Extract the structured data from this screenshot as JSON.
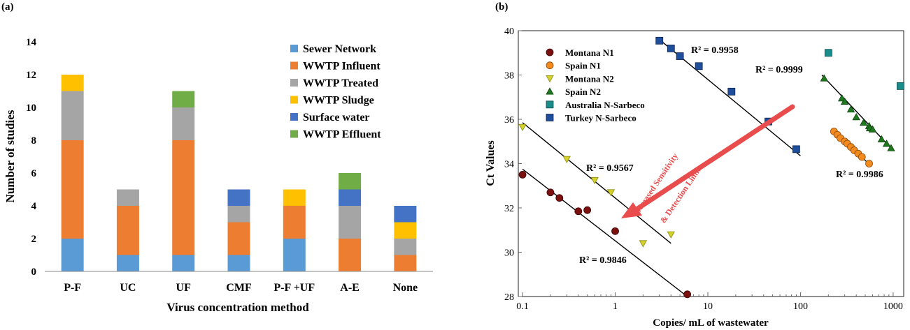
{
  "chart_data": [
    {
      "panel_label": "(a)",
      "type": "bar",
      "stacked": true,
      "xlabel": "Virus concentration method",
      "ylabel": "Number of studies",
      "ylim": [
        0,
        14
      ],
      "yticks": [
        0,
        2,
        4,
        6,
        8,
        10,
        12,
        14
      ],
      "categories": [
        "P-F",
        "UC",
        "UF",
        "CMF",
        "P-F +UF",
        "A-E",
        "None"
      ],
      "legend_position": "top-right",
      "series": [
        {
          "name": "Sewer Network",
          "color": "#5b9bd5",
          "values": [
            2,
            1,
            1,
            1,
            2,
            0,
            0
          ]
        },
        {
          "name": "WWTP Influent",
          "color": "#ed7d31",
          "values": [
            6,
            3,
            7,
            2,
            2,
            2,
            1
          ]
        },
        {
          "name": "WWTP Treated",
          "color": "#a5a5a5",
          "values": [
            3,
            1,
            2,
            1,
            0,
            2,
            1
          ]
        },
        {
          "name": "WWTP Sludge",
          "color": "#ffc000",
          "values": [
            1,
            0,
            0,
            0,
            1,
            0,
            1
          ]
        },
        {
          "name": "Surface water",
          "color": "#4472c4",
          "values": [
            0,
            0,
            0,
            1,
            0,
            1,
            1
          ]
        },
        {
          "name": "WWTP Effluent",
          "color": "#70ad47",
          "values": [
            0,
            0,
            1,
            0,
            0,
            1,
            0
          ]
        }
      ]
    },
    {
      "panel_label": "(b)",
      "type": "scatter",
      "xlabel": "Copies/ mL of wastewater",
      "ylabel": "Ct Values",
      "xscale": "log",
      "xlim": [
        0.09,
        1300
      ],
      "ylim": [
        28,
        40
      ],
      "xticks": [
        0.1,
        1,
        10,
        100,
        1000
      ],
      "xtick_labels": [
        "0.1",
        "1",
        "10",
        "100",
        "1000"
      ],
      "yticks": [
        28,
        30,
        32,
        34,
        36,
        38,
        40
      ],
      "legend_position": "top-left",
      "series": [
        {
          "name": "Montana N1",
          "marker": "circle",
          "color": "#7b1010",
          "stroke": "#3a0505",
          "x": [
            0.1,
            0.2,
            0.25,
            0.4,
            0.5,
            1.0,
            6.0
          ],
          "y": [
            33.5,
            32.7,
            32.45,
            31.85,
            31.9,
            30.95,
            28.1
          ]
        },
        {
          "name": "Spain N1",
          "marker": "circle",
          "color": "#f28a1e",
          "stroke": "#8a4a08",
          "x": [
            230,
            250,
            270,
            300,
            320,
            350,
            380,
            420,
            460,
            550
          ],
          "y": [
            35.45,
            35.3,
            35.15,
            35.0,
            34.9,
            34.75,
            34.6,
            34.45,
            34.3,
            34.0
          ]
        },
        {
          "name": "Montana N2",
          "marker": "triangle-down",
          "color": "#d3d12a",
          "stroke": "#8a8a10",
          "x": [
            0.1,
            0.3,
            0.6,
            0.9,
            2.0,
            4.0
          ],
          "y": [
            35.65,
            34.2,
            33.25,
            32.7,
            30.4,
            30.8
          ]
        },
        {
          "name": "Spain N2",
          "marker": "triangle-up",
          "color": "#1f7a1f",
          "stroke": "#0e400e",
          "x": [
            180,
            280,
            300,
            350,
            400,
            480,
            550,
            560,
            600,
            750,
            850,
            950
          ],
          "y": [
            37.85,
            36.95,
            36.8,
            36.45,
            36.1,
            35.85,
            35.7,
            35.6,
            35.55,
            35.1,
            34.9,
            34.7
          ]
        },
        {
          "name": "Australia N-Sarbeco",
          "marker": "square",
          "color": "#1a8c8c",
          "stroke": "#0d4a4a",
          "x": [
            200,
            1200
          ],
          "y": [
            39.0,
            37.5
          ]
        },
        {
          "name": "Turkey N-Sarbeco",
          "marker": "square",
          "color": "#1f4e9c",
          "stroke": "#0c2550",
          "x": [
            3.0,
            4.0,
            5.0,
            8.0,
            18.0,
            45.0,
            90.0
          ],
          "y": [
            39.55,
            39.2,
            38.85,
            38.4,
            37.25,
            35.9,
            34.65
          ]
        }
      ],
      "fit_lines": [
        {
          "label": "R² = 0.9846",
          "x": [
            0.1,
            6.0
          ],
          "y": [
            33.75,
            28.0
          ]
        },
        {
          "label": "R² = 0.9567",
          "x": [
            0.1,
            4.0
          ],
          "y": [
            35.85,
            30.4
          ]
        },
        {
          "label": "R² = 0.9958",
          "x": [
            3.0,
            100.0
          ],
          "y": [
            39.6,
            34.35
          ]
        },
        {
          "label": "R² = 0.9999",
          "x": [
            170,
            1000
          ],
          "y": [
            38.0,
            34.6
          ]
        },
        {
          "label": "R² = 0.9986",
          "x": [
            220,
            560
          ],
          "y": [
            35.55,
            33.95
          ]
        }
      ],
      "annotation": {
        "line1": "Increased Sensitivity",
        "line2": "& Detection Limit",
        "color": "#e84c4c"
      }
    }
  ]
}
